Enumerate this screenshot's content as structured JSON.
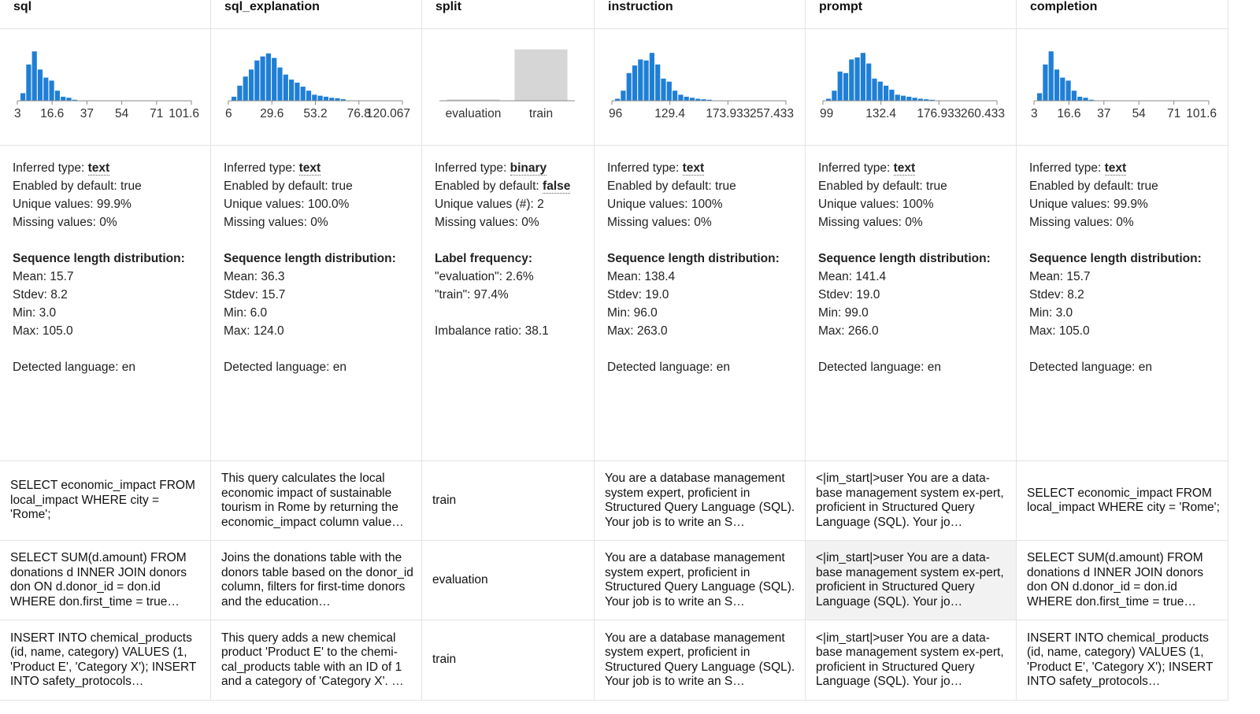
{
  "columns": [
    {
      "name": "sql",
      "ticks": [
        "3",
        "16.6",
        "37",
        "54",
        "71",
        "101.6"
      ],
      "histogram": [
        0.15,
        0.72,
        0.98,
        0.62,
        0.46,
        0.4,
        0.2,
        0.08,
        0.06,
        0.02
      ],
      "inferred_type_label": "Inferred type: ",
      "inferred_type": "text",
      "enabled_label": "Enabled by default: ",
      "enabled": "true",
      "unique": "Unique values: 99.9%",
      "missing": "Missing values: 0%",
      "dist_title": "Sequence length distribution:",
      "stats": [
        "Mean: 15.7",
        "Stdev: 8.2",
        "Min: 3.0",
        "Max: 105.0"
      ],
      "language": "Detected language: en",
      "rows": [
        "SELECT economic_impact FROM local_impact WHERE city = 'Rome';",
        "SELECT SUM(d.amount) FROM donations d INNER JOIN donors don ON d.donor_id = don.id WHERE don.first_time = true…",
        "INSERT INTO chemical_products (id, name, category) VALUES (1, 'Product E', 'Category X'); INSERT INTO safety_protocols…"
      ]
    },
    {
      "name": "sql_explanation",
      "ticks": [
        "6",
        "29.6",
        "53.2",
        "76.8",
        "120.067"
      ],
      "histogram": [
        0.08,
        0.3,
        0.48,
        0.62,
        0.8,
        0.88,
        0.94,
        0.85,
        0.66,
        0.52,
        0.42,
        0.36,
        0.28,
        0.2,
        0.12,
        0.1,
        0.08,
        0.06,
        0.05,
        0.03
      ],
      "inferred_type_label": "Inferred type: ",
      "inferred_type": "text",
      "enabled_label": "Enabled by default: ",
      "enabled": "true",
      "unique": "Unique values: 100.0%",
      "missing": "Missing values: 0%",
      "dist_title": "Sequence length distribution:",
      "stats": [
        "Mean: 36.3",
        "Stdev: 15.7",
        "Min: 6.0",
        "Max: 124.0"
      ],
      "language": "Detected language: en",
      "rows": [
        "This query calculates the local economic impact of sustainable tourism in Rome by returning the economic_impact column value…",
        "Joins the donations table with the donors table based on the donor_id column, filters for first-time donors and the education…",
        "This query adds a new chemical product 'Product E' to the chemi-cal_products table with an ID of 1 and a category of 'Category X'. …"
      ]
    },
    {
      "name": "split",
      "ticks": [
        "evaluation",
        "train"
      ],
      "label_freq": [
        2.6,
        97.4
      ],
      "inferred_type_label": "Inferred type: ",
      "inferred_type": "binary",
      "enabled_label": "Enabled by default: ",
      "enabled": "false",
      "unique": "Unique values (#): 2",
      "missing": "Missing values: 0%",
      "dist_title": "Label frequency:",
      "stats": [
        "\"evaluation\": 2.6%",
        "\"train\": 97.4%"
      ],
      "language": "Imbalance ratio: 38.1",
      "rows": [
        "train",
        "evaluation",
        "train"
      ]
    },
    {
      "name": "instruction",
      "ticks": [
        "96",
        "129.4",
        "173.933",
        "257.433"
      ],
      "histogram": [
        0.04,
        0.2,
        0.55,
        0.7,
        0.82,
        0.8,
        0.95,
        0.72,
        0.44,
        0.38,
        0.2,
        0.12,
        0.08,
        0.06,
        0.04,
        0.03,
        0.02
      ],
      "inferred_type_label": "Inferred type: ",
      "inferred_type": "text",
      "enabled_label": "Enabled by default: ",
      "enabled": "true",
      "unique": "Unique values: 100%",
      "missing": "Missing values: 0%",
      "dist_title": "Sequence length distribution:",
      "stats": [
        "Mean: 138.4",
        "Stdev: 19.0",
        "Min: 96.0",
        "Max: 263.0"
      ],
      "language": "Detected language: en",
      "rows": [
        "You are a database management system expert, proficient in Structured Query Language (SQL). Your job is to write an S…",
        "You are a database management system expert, proficient in Structured Query Language (SQL). Your job is to write an S…",
        "You are a database management system expert, proficient in Structured Query Language (SQL). Your job is to write an S…"
      ]
    },
    {
      "name": "prompt",
      "ticks": [
        "99",
        "132.4",
        "176.933",
        "260.433"
      ],
      "histogram": [
        0.04,
        0.2,
        0.58,
        0.55,
        0.82,
        0.86,
        0.95,
        0.74,
        0.44,
        0.38,
        0.3,
        0.22,
        0.12,
        0.1,
        0.08,
        0.06,
        0.04,
        0.03,
        0.02
      ],
      "inferred_type_label": "Inferred type: ",
      "inferred_type": "text",
      "enabled_label": "Enabled by default: ",
      "enabled": "true",
      "unique": "Unique values: 100%",
      "missing": "Missing values: 0%",
      "dist_title": "Sequence length distribution:",
      "stats": [
        "Mean: 141.4",
        "Stdev: 19.0",
        "Min: 99.0",
        "Max: 266.0"
      ],
      "language": "Detected language: en",
      "rows": [
        "<|im_start|>user You are a data-base management system ex-pert, proficient in Structured Query Language (SQL). Your jo…",
        "<|im_start|>user You are a data-base management system ex-pert, proficient in Structured Query Language (SQL). Your jo…",
        "<|im_start|>user You are a data-base management system ex-pert, proficient in Structured Query Language (SQL). Your jo…"
      ]
    },
    {
      "name": "completion",
      "ticks": [
        "3",
        "16.6",
        "37",
        "54",
        "71",
        "101.6"
      ],
      "histogram": [
        0.15,
        0.72,
        0.98,
        0.62,
        0.46,
        0.4,
        0.2,
        0.08,
        0.06,
        0.02
      ],
      "inferred_type_label": "Inferred type: ",
      "inferred_type": "text",
      "enabled_label": "Enabled by default: ",
      "enabled": "true",
      "unique": "Unique values: 99.9%",
      "missing": "Missing values: 0%",
      "dist_title": "Sequence length distribution:",
      "stats": [
        "Mean: 15.7",
        "Stdev: 8.2",
        "Min: 3.0",
        "Max: 105.0"
      ],
      "language": "Detected language: en",
      "rows": [
        "SELECT economic_impact FROM local_impact WHERE city = 'Rome';",
        "SELECT SUM(d.amount) FROM donations d INNER JOIN donors don ON d.donor_id = don.id WHERE don.first_time = true…",
        "INSERT INTO chemical_products (id, name, category) VALUES (1, 'Product E', 'Category X'); INSERT INTO safety_protocols…"
      ]
    }
  ],
  "colors": {
    "bar": "#1f7fd6",
    "binary_bar": "#d6d6d6",
    "axis": "#888888",
    "highlight": "#f2f2f2"
  }
}
